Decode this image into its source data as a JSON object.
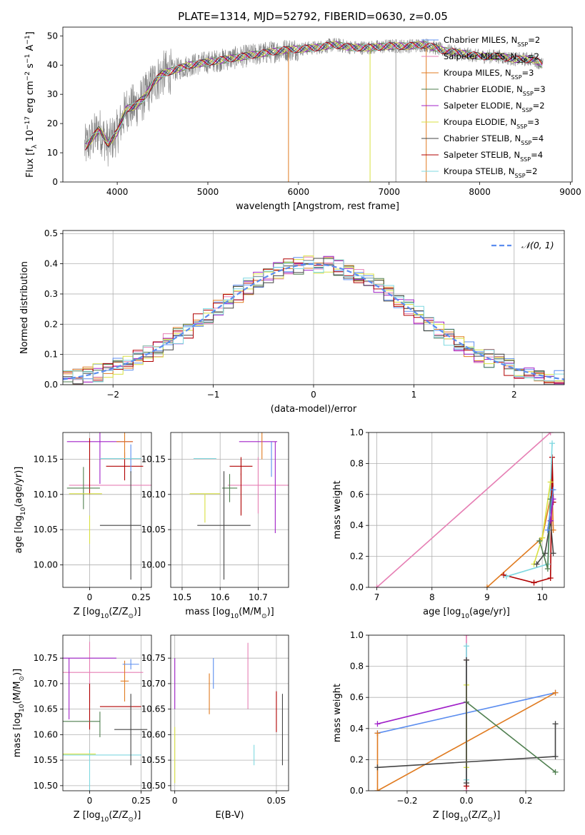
{
  "title": "PLATE=1314, MJD=52792, FIBERID=0630, z=0.05",
  "legend_labels": [
    "Chabrier MILES, N",
    "Salpeter MILES, N",
    "Kroupa MILES, N",
    "Chabrier ELODIE, N",
    "Salpeter ELODIE, N",
    "Kroupa ELODIE, N",
    "Chabrier STELIB, N",
    "Salpeter STELIB, N",
    "Kroupa STELIB, N"
  ],
  "chart_data": [
    {
      "id": "spectrum",
      "type": "line",
      "xlabel": "wavelength [Angstrom, rest frame]",
      "ylabel": "Flux [f_λ 10^-17 erg cm^-2 s^-1 A^-1]",
      "xlim": [
        3400,
        9020
      ],
      "ylim": [
        0,
        53
      ],
      "xticks": [
        4000,
        5000,
        6000,
        7000,
        8000,
        9000
      ],
      "yticks": [
        0,
        10,
        20,
        30,
        40,
        50
      ],
      "grid": false,
      "legend_position": "top-right",
      "series": [
        {
          "name": "Chabrier MILES, N_SSP=2",
          "color": "#5b8def"
        },
        {
          "name": "Salpeter MILES, N_SSP=2",
          "color": "#e67fb4"
        },
        {
          "name": "Kroupa MILES, N_SSP=3",
          "color": "#e07b20"
        },
        {
          "name": "Chabrier ELODIE, N_SSP=3",
          "color": "#4f7f4f"
        },
        {
          "name": "Salpeter ELODIE, N_SSP=2",
          "color": "#a020c8"
        },
        {
          "name": "Kroupa ELODIE, N_SSP=3",
          "color": "#d8e040"
        },
        {
          "name": "Chabrier STELIB, N_SSP=4",
          "color": "#444444"
        },
        {
          "name": "Salpeter STELIB, N_SSP=4",
          "color": "#b00000"
        },
        {
          "name": "Kroupa STELIB, N_SSP=2",
          "color": "#7fd8e0"
        }
      ],
      "continuum": {
        "x": [
          3650,
          3800,
          3900,
          4000,
          4100,
          4200,
          4300,
          4400,
          4500,
          4600,
          4800,
          5000,
          5200,
          5400,
          5600,
          5800,
          6000,
          6200,
          6400,
          6600,
          6800,
          7000,
          7200,
          7400,
          7600,
          7800,
          8000,
          8200,
          8400,
          8600,
          8700
        ],
        "y": [
          12,
          18,
          13,
          17,
          25,
          26,
          29,
          34,
          37,
          38,
          40,
          41,
          42,
          43,
          44,
          45,
          45.5,
          46,
          47,
          46,
          46,
          46.5,
          46.5,
          47,
          45,
          44,
          43,
          43,
          42,
          42,
          40
        ]
      }
    },
    {
      "id": "residuals",
      "type": "histogram",
      "xlabel": "(data-model)/error",
      "ylabel": "Normed distribution",
      "xlim": [
        -2.5,
        2.5
      ],
      "ylim": [
        0,
        0.51
      ],
      "xticks": [
        -2,
        -1,
        0,
        1,
        2
      ],
      "yticks": [
        0.0,
        0.1,
        0.2,
        0.3,
        0.4,
        0.5
      ],
      "grid": true,
      "legend_position": "top-right",
      "reference": {
        "name": "N(0,1)",
        "style": "dashed",
        "color": "#5b8def"
      }
    },
    {
      "id": "age_vs_Z",
      "type": "scatter",
      "xlabel": "Z [log10(Z/Z⊙)]",
      "ylabel": "age [log10(age/yr)]",
      "xlim": [
        -0.13,
        0.3
      ],
      "ylim": [
        9.968,
        10.188
      ],
      "xticks": [
        0.0,
        0.25
      ],
      "yticks": [
        10.0,
        10.05,
        10.1,
        10.15
      ],
      "grid": true,
      "points": [
        {
          "x": 0.1,
          "y": 10.113,
          "xerr": 0.2,
          "yerr": 0,
          "color": "#e67fb4"
        },
        {
          "x": 0.05,
          "y": 10.175,
          "xerr": 0.16,
          "yerr": 0.06,
          "color": "#a020c8"
        },
        {
          "x": 0.0,
          "y": 10.14,
          "xerr": 0.0,
          "yerr": 0.04,
          "color": "#b00000"
        },
        {
          "x": 0.17,
          "y": 10.14,
          "xerr": 0.09,
          "yerr": 0.02,
          "color": "#b00000"
        },
        {
          "x": 0.17,
          "y": 10.175,
          "xerr": 0.04,
          "yerr": 0.025,
          "color": "#e07b20"
        },
        {
          "x": 0.2,
          "y": 10.151,
          "xerr": 0.05,
          "yerr": 0.02,
          "color": "#5b8def"
        },
        {
          "x": 0.15,
          "y": 10.151,
          "xerr": 0.1,
          "yerr": 0.0,
          "color": "#7fd8e0"
        },
        {
          "x": -0.03,
          "y": 10.109,
          "xerr": 0.08,
          "yerr": 0.03,
          "color": "#4f7f4f"
        },
        {
          "x": -0.02,
          "y": 10.101,
          "xerr": 0.08,
          "yerr": 0.0,
          "color": "#d8e040"
        },
        {
          "x": 0.0,
          "y": 10.05,
          "xerr": 0.0,
          "yerr": 0.02,
          "color": "#d8e040"
        },
        {
          "x": 0.15,
          "y": 10.056,
          "xerr": 0.1,
          "yerr": 0.0,
          "color": "#444444"
        },
        {
          "x": 0.2,
          "y": 10.056,
          "xerr": 0.0,
          "yerr": 0.077,
          "color": "#444444"
        }
      ]
    },
    {
      "id": "age_vs_mass",
      "type": "scatter",
      "xlabel": "mass [log10(M/M⊙)]",
      "ylabel": "",
      "xlim": [
        10.47,
        10.78
      ],
      "ylim": [
        9.968,
        10.188
      ],
      "xticks": [
        10.5,
        10.6,
        10.7
      ],
      "yticks": [
        10.0,
        10.05,
        10.1,
        10.15
      ],
      "grid": true,
      "points": [
        {
          "x": 10.7,
          "y": 10.113,
          "xerr": 0.08,
          "yerr": 0.04,
          "color": "#e67fb4"
        },
        {
          "x": 10.7,
          "y": 10.175,
          "xerr": 0.05,
          "yerr": 0.0,
          "color": "#a020c8"
        },
        {
          "x": 10.745,
          "y": 10.11,
          "xerr": 0.0,
          "yerr": 0.065,
          "color": "#a020c8"
        },
        {
          "x": 10.655,
          "y": 10.14,
          "xerr": 0.03,
          "yerr": 0.013,
          "color": "#b00000"
        },
        {
          "x": 10.655,
          "y": 10.1,
          "xerr": 0.0,
          "yerr": 0.03,
          "color": "#b00000"
        },
        {
          "x": 10.71,
          "y": 10.175,
          "xerr": 0.0,
          "yerr": 0.025,
          "color": "#e07b20"
        },
        {
          "x": 10.735,
          "y": 10.15,
          "xerr": 0.0,
          "yerr": 0.025,
          "color": "#5b8def"
        },
        {
          "x": 10.56,
          "y": 10.151,
          "xerr": 0.03,
          "yerr": 0.0,
          "color": "#7fd8e0"
        },
        {
          "x": 10.625,
          "y": 10.109,
          "xerr": 0.02,
          "yerr": 0.02,
          "color": "#4f7f4f"
        },
        {
          "x": 10.56,
          "y": 10.101,
          "xerr": 0.04,
          "yerr": 0.0,
          "color": "#d8e040"
        },
        {
          "x": 10.56,
          "y": 10.08,
          "xerr": 0.0,
          "yerr": 0.02,
          "color": "#d8e040"
        },
        {
          "x": 10.61,
          "y": 10.056,
          "xerr": 0.07,
          "yerr": 0.077,
          "color": "#444444"
        }
      ]
    },
    {
      "id": "weight_vs_age",
      "type": "line",
      "xlabel": "age [log10(age/yr)]",
      "ylabel": "mass weight",
      "xlim": [
        6.85,
        10.4
      ],
      "ylim": [
        0,
        1
      ],
      "xticks": [
        7,
        8,
        9,
        10
      ],
      "yticks": [
        0.0,
        0.2,
        0.4,
        0.6,
        0.8,
        1.0
      ],
      "grid": true,
      "series": [
        {
          "color": "#e67fb4",
          "x": [
            7.0,
            10.15
          ],
          "y": [
            0.0,
            1.0
          ]
        },
        {
          "color": "#e07b20",
          "x": [
            9.0,
            10.0,
            10.18,
            10.2
          ],
          "y": [
            0.0,
            0.32,
            0.63,
            0.37
          ]
        },
        {
          "color": "#b00000",
          "x": [
            9.3,
            9.85,
            10.15,
            10.18,
            10.2
          ],
          "y": [
            0.08,
            0.03,
            0.06,
            0.84,
            0.55
          ]
        },
        {
          "color": "#7fd8e0",
          "x": [
            9.35,
            10.1,
            10.18
          ],
          "y": [
            0.07,
            0.15,
            0.93
          ]
        },
        {
          "color": "#d8e040",
          "x": [
            9.85,
            10.0,
            10.15
          ],
          "y": [
            0.15,
            0.32,
            0.68
          ]
        },
        {
          "color": "#444444",
          "x": [
            9.9,
            10.05,
            10.15,
            10.2
          ],
          "y": [
            0.15,
            0.22,
            0.43,
            0.22
          ]
        },
        {
          "color": "#4f7f4f",
          "x": [
            9.95,
            10.1,
            10.15
          ],
          "y": [
            0.3,
            0.12,
            0.57
          ]
        },
        {
          "color": "#a020c8",
          "x": [
            10.15,
            10.2
          ],
          "y": [
            0.43,
            0.57
          ]
        },
        {
          "color": "#5b8def",
          "x": [
            10.1,
            10.2
          ],
          "y": [
            0.37,
            0.63
          ]
        }
      ]
    },
    {
      "id": "mass_vs_Z",
      "type": "scatter",
      "xlabel": "Z [log10(Z/Z⊙)]",
      "ylabel": "mass [log10(M/M⊙)]",
      "xlim": [
        -0.13,
        0.3
      ],
      "ylim": [
        10.49,
        10.795
      ],
      "xticks": [
        0.0,
        0.25
      ],
      "yticks": [
        10.5,
        10.55,
        10.6,
        10.65,
        10.7,
        10.75
      ],
      "grid": true,
      "points": [
        {
          "x": 0.0,
          "y": 10.722,
          "xerr": 0.26,
          "yerr": 0.06,
          "color": "#e67fb4"
        },
        {
          "x": 0.0,
          "y": 10.75,
          "xerr": 0.13,
          "yerr": 0.0,
          "color": "#a020c8"
        },
        {
          "x": -0.1,
          "y": 10.69,
          "xerr": 0.0,
          "yerr": 0.06,
          "color": "#a020c8"
        },
        {
          "x": 0.0,
          "y": 10.655,
          "xerr": 0.0,
          "yerr": 0.045,
          "color": "#b00000"
        },
        {
          "x": 0.15,
          "y": 10.655,
          "xerr": 0.1,
          "yerr": 0.0,
          "color": "#b00000"
        },
        {
          "x": 0.17,
          "y": 10.705,
          "xerr": 0.02,
          "yerr": 0.04,
          "color": "#e07b20"
        },
        {
          "x": 0.2,
          "y": 10.738,
          "xerr": 0.04,
          "yerr": 0.01,
          "color": "#5b8def"
        },
        {
          "x": 0.05,
          "y": 10.56,
          "xerr": 0.2,
          "yerr": 0.0,
          "color": "#7fd8e0"
        },
        {
          "x": 0.0,
          "y": 10.53,
          "xerr": 0.0,
          "yerr": 0.04,
          "color": "#7fd8e0"
        },
        {
          "x": -0.05,
          "y": 10.626,
          "xerr": 0.1,
          "yerr": 0.0,
          "color": "#4f7f4f"
        },
        {
          "x": 0.05,
          "y": 10.62,
          "xerr": 0.0,
          "yerr": 0.025,
          "color": "#4f7f4f"
        },
        {
          "x": -0.05,
          "y": 10.562,
          "xerr": 0.08,
          "yerr": 0.0,
          "color": "#d8e040"
        },
        {
          "x": 0.2,
          "y": 10.61,
          "xerr": 0.08,
          "yerr": 0.0,
          "color": "#444444"
        },
        {
          "x": 0.2,
          "y": 10.61,
          "xerr": 0.0,
          "yerr": 0.07,
          "color": "#444444"
        }
      ]
    },
    {
      "id": "mass_vs_EBV",
      "type": "scatter",
      "xlabel": "E(B-V)",
      "ylabel": "",
      "xlim": [
        -0.002,
        0.056
      ],
      "ylim": [
        10.49,
        10.795
      ],
      "xticks": [
        0.0,
        0.05
      ],
      "yticks": [
        10.5,
        10.55,
        10.6,
        10.65,
        10.7,
        10.75
      ],
      "grid": true,
      "points": [
        {
          "x": 0.0,
          "y": 10.7,
          "xerr": 0.0,
          "yerr": 0.05,
          "color": "#a020c8"
        },
        {
          "x": 0.0,
          "y": 10.56,
          "xerr": 0.0,
          "yerr": 0.055,
          "color": "#d8e040"
        },
        {
          "x": 0.017,
          "y": 10.68,
          "xerr": 0.0,
          "yerr": 0.04,
          "color": "#e07b20"
        },
        {
          "x": 0.019,
          "y": 10.72,
          "xerr": 0.0,
          "yerr": 0.03,
          "color": "#5b8def"
        },
        {
          "x": 0.036,
          "y": 10.715,
          "xerr": 0.0,
          "yerr": 0.065,
          "color": "#e67fb4"
        },
        {
          "x": 0.039,
          "y": 10.56,
          "xerr": 0.0,
          "yerr": 0.02,
          "color": "#7fd8e0"
        },
        {
          "x": 0.05,
          "y": 10.645,
          "xerr": 0.0,
          "yerr": 0.04,
          "color": "#b00000"
        },
        {
          "x": 0.053,
          "y": 10.61,
          "xerr": 0.0,
          "yerr": 0.07,
          "color": "#444444"
        }
      ]
    },
    {
      "id": "weight_vs_Z",
      "type": "line",
      "xlabel": "Z [log10(Z/Z⊙)]",
      "ylabel": "mass weight",
      "xlim": [
        -0.33,
        0.33
      ],
      "ylim": [
        0,
        1
      ],
      "xticks": [
        -0.2,
        0.0,
        0.2
      ],
      "yticks": [
        0.0,
        0.2,
        0.4,
        0.6,
        0.8,
        1.0
      ],
      "grid": true,
      "series": [
        {
          "color": "#a020c8",
          "x": [
            -0.3,
            0.0
          ],
          "y": [
            0.43,
            0.57
          ]
        },
        {
          "color": "#5b8def",
          "x": [
            -0.3,
            0.3
          ],
          "y": [
            0.37,
            0.63
          ]
        },
        {
          "color": "#e07b20",
          "x": [
            -0.3,
            -0.3,
            0.3
          ],
          "y": [
            0.37,
            0.0,
            0.63
          ]
        },
        {
          "color": "#444444",
          "x": [
            -0.3,
            0.3,
            0.3
          ],
          "y": [
            0.15,
            0.22,
            0.43
          ]
        },
        {
          "color": "#4f7f4f",
          "x": [
            0.0,
            0.3
          ],
          "y": [
            0.57,
            0.12
          ]
        },
        {
          "color": "#e67fb4",
          "x": [
            0.0,
            0.0
          ],
          "y": [
            0.0,
            1.0
          ]
        },
        {
          "color": "#b00000",
          "x": [
            0.0,
            0.0
          ],
          "y": [
            0.03,
            0.84
          ]
        },
        {
          "color": "#7fd8e0",
          "x": [
            0.0,
            0.0
          ],
          "y": [
            0.07,
            0.93
          ]
        },
        {
          "color": "#d8e040",
          "x": [
            0.0,
            0.0
          ],
          "y": [
            0.15,
            0.68
          ]
        },
        {
          "color": "#444444",
          "x": [
            0.0,
            0.0
          ],
          "y": [
            0.05,
            0.84
          ]
        }
      ]
    }
  ]
}
